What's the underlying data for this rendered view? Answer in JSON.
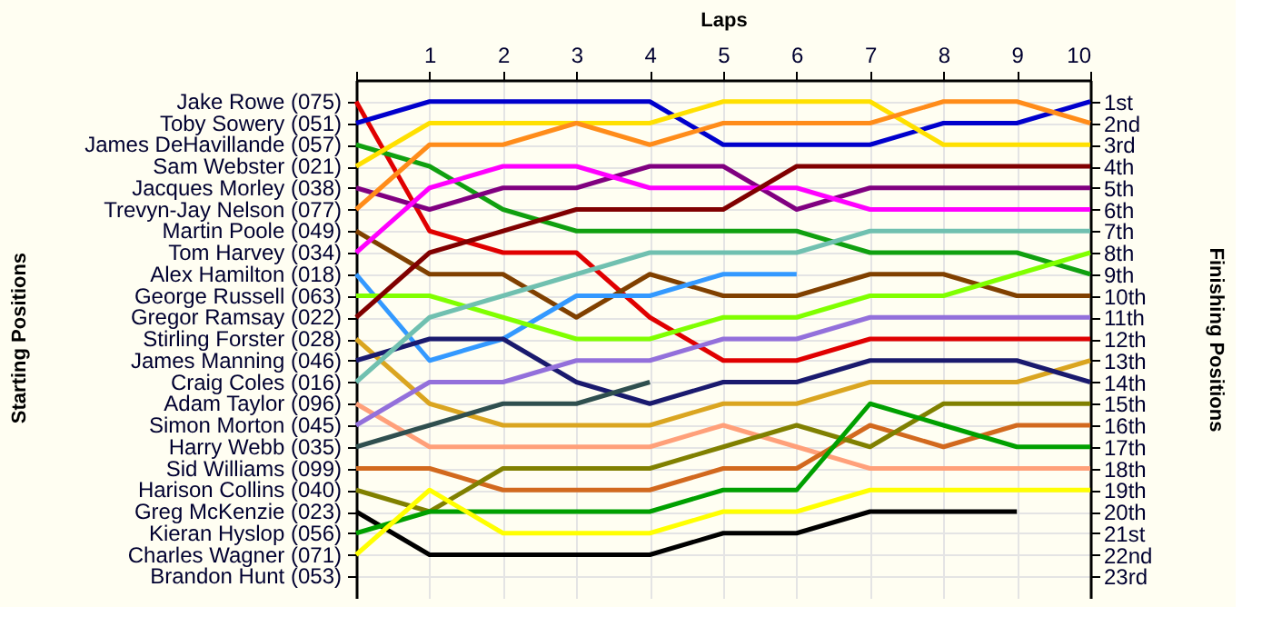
{
  "chart_data": {
    "type": "line",
    "xlabel": "Laps",
    "ylabel": "Finishing Positions",
    "x": [
      0,
      1,
      2,
      3,
      4,
      5,
      6,
      7,
      8,
      9,
      10
    ],
    "xlim": [
      0,
      10
    ],
    "xticks": [
      {
        "value": 0,
        "label": null
      },
      1,
      2,
      3,
      4,
      5,
      6,
      7,
      8,
      9,
      10
    ],
    "ylim": [
      24,
      0
    ],
    "yticks": [
      {
        "value": 1,
        "label": "1st"
      },
      {
        "value": 2,
        "label": "2nd"
      },
      {
        "value": 3,
        "label": "3rd"
      },
      {
        "value": 4,
        "label": "4th"
      },
      {
        "value": 5,
        "label": "5th"
      },
      {
        "value": 6,
        "label": "6th"
      },
      {
        "value": 7,
        "label": "7th"
      },
      {
        "value": 8,
        "label": "8th"
      },
      {
        "value": 9,
        "label": "9th"
      },
      {
        "value": 10,
        "label": "10th"
      },
      {
        "value": 11,
        "label": "11th"
      },
      {
        "value": 12,
        "label": "12th"
      },
      {
        "value": 13,
        "label": "13th"
      },
      {
        "value": 14,
        "label": "14th"
      },
      {
        "value": 15,
        "label": "15th"
      },
      {
        "value": 16,
        "label": "16th"
      },
      {
        "value": 17,
        "label": "17th"
      },
      {
        "value": 18,
        "label": "18th"
      },
      {
        "value": 19,
        "label": "19th"
      },
      {
        "value": 20,
        "label": "20th"
      },
      {
        "value": 21,
        "label": "21st"
      },
      {
        "value": 22,
        "label": "22nd"
      },
      {
        "value": 23,
        "label": "23rd"
      }
    ],
    "annotations": [
      "Starting Positions",
      "Jake Rowe (075)",
      "Toby Sowery (051)",
      "James DeHavillande (057)",
      "Sam Webster (021)",
      "Jacques Morley (038)",
      "Trevyn-Jay Nelson (077)",
      "Martin Poole (049)",
      "Tom Harvey (034)",
      "Alex Hamilton (018)",
      "George Russell (063)",
      "Gregor Ramsay (022)",
      "Stirling Forster (028)",
      "James Manning (046)",
      "Craig Coles (016)",
      "Adam Taylor (096)",
      "Simon Morton (045)",
      "Harry Webb (035)",
      "Sid Williams (099)",
      "Harison Collins (040)",
      "Greg McKenzie (023)",
      "Kieran Hyslop (056)",
      "Charles Wagner (071)",
      "Brandon Hunt (053)"
    ],
    "grid": true,
    "legend": false,
    "marker": "none",
    "line_style": "solid",
    "series": [
      {
        "color": "#e00000",
        "values": [
          1,
          7,
          8,
          8,
          11,
          13,
          13,
          12,
          12,
          12,
          12
        ]
      },
      {
        "color": "#0000cc",
        "values": [
          2,
          1,
          1,
          1,
          1,
          3,
          3,
          3,
          2,
          2,
          1
        ]
      },
      {
        "color": "#10a010",
        "values": [
          3,
          4,
          6,
          7,
          7,
          7,
          7,
          8,
          8,
          8,
          9
        ]
      },
      {
        "color": "#ffe000",
        "values": [
          4,
          2,
          2,
          2,
          2,
          1,
          1,
          1,
          3,
          3,
          3
        ]
      },
      {
        "color": "#800080",
        "values": [
          5,
          6,
          5,
          5,
          4,
          4,
          6,
          5,
          5,
          5,
          5
        ]
      },
      {
        "color": "#ff8c1a",
        "values": [
          6,
          3,
          3,
          2,
          3,
          2,
          2,
          2,
          1,
          1,
          2
        ]
      },
      {
        "color": "#804000",
        "values": [
          7,
          9,
          9,
          11,
          9,
          10,
          10,
          9,
          9,
          10,
          10
        ]
      },
      {
        "color": "#ff00ff",
        "values": [
          8,
          5,
          4,
          4,
          5,
          5,
          5,
          6,
          6,
          6,
          6
        ]
      },
      {
        "color": "#3399ff",
        "values": [
          9,
          13,
          12,
          10,
          10,
          9,
          9,
          null,
          null,
          null,
          null
        ]
      },
      {
        "color": "#80ff00",
        "values": [
          10,
          10,
          11,
          12,
          12,
          11,
          11,
          10,
          10,
          9,
          8
        ]
      },
      {
        "color": "#800000",
        "values": [
          11,
          8,
          7,
          6,
          6,
          6,
          4,
          4,
          4,
          4,
          4
        ]
      },
      {
        "color": "#daa520",
        "values": [
          12,
          15,
          16,
          16,
          16,
          15,
          15,
          14,
          14,
          14,
          13
        ]
      },
      {
        "color": "#1a1a6e",
        "values": [
          13,
          12,
          12,
          14,
          15,
          14,
          14,
          13,
          13,
          13,
          14
        ]
      },
      {
        "color": "#70c0b0",
        "values": [
          14,
          11,
          10,
          9,
          8,
          8,
          8,
          7,
          7,
          7,
          7
        ]
      },
      {
        "color": "#ffa07a",
        "values": [
          15,
          17,
          17,
          17,
          17,
          16,
          17,
          18,
          18,
          18,
          18
        ]
      },
      {
        "color": "#9370db",
        "values": [
          16,
          14,
          14,
          13,
          13,
          12,
          12,
          11,
          11,
          11,
          11
        ]
      },
      {
        "color": "#2f4f4f",
        "values": [
          17,
          16,
          15,
          15,
          14,
          null,
          null,
          null,
          null,
          null,
          null
        ]
      },
      {
        "color": "#d2691e",
        "values": [
          18,
          18,
          19,
          19,
          19,
          18,
          18,
          16,
          17,
          16,
          16
        ]
      },
      {
        "color": "#808000",
        "values": [
          19,
          20,
          18,
          18,
          18,
          17,
          16,
          17,
          15,
          15,
          15
        ]
      },
      {
        "color": "#000000",
        "values": [
          20,
          22,
          22,
          22,
          22,
          21,
          21,
          20,
          20,
          20,
          null
        ]
      },
      {
        "color": "#00a000",
        "values": [
          21,
          20,
          20,
          20,
          20,
          19,
          19,
          15,
          16,
          17,
          17
        ]
      },
      {
        "color": "#ffff00",
        "values": [
          22,
          19,
          21,
          21,
          21,
          20,
          20,
          19,
          19,
          19,
          19
        ]
      }
    ]
  }
}
